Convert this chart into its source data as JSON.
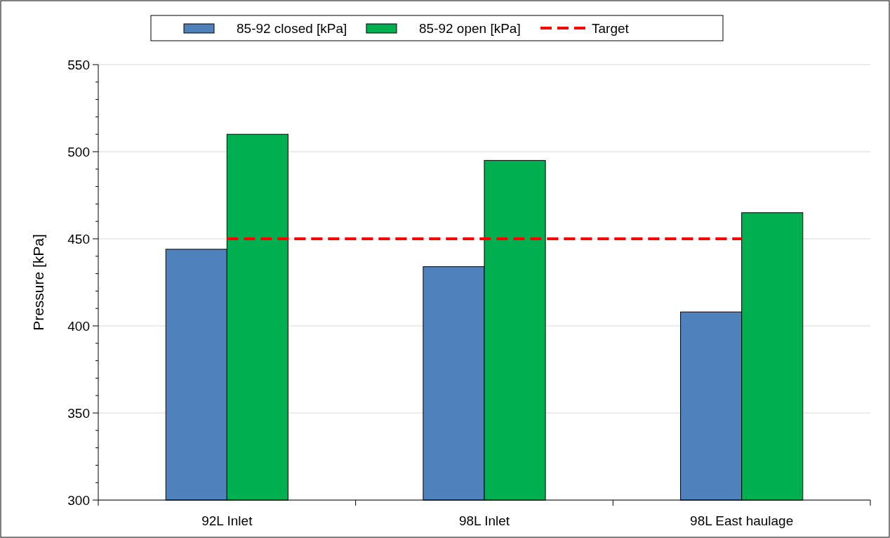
{
  "chart_data": {
    "type": "bar",
    "ylabel": "Pressure [kPa]",
    "categories": [
      "92L Inlet",
      "98L Inlet",
      "98L East haulage"
    ],
    "series": [
      {
        "name": "85-92 closed [kPa]",
        "color": "#4f81bd",
        "values": [
          444,
          434,
          408
        ]
      },
      {
        "name": "85-92 open [kPa]",
        "color": "#00b050",
        "values": [
          510,
          495,
          465
        ]
      },
      {
        "name": "Target",
        "type": "line",
        "color": "#ff0000",
        "line_style": "dashed",
        "marker": "none",
        "values": [
          450,
          450,
          450
        ]
      }
    ],
    "ylim": [
      300,
      550
    ],
    "yticks": [
      300,
      {
        "value": 310,
        "label": null
      },
      {
        "value": 320,
        "label": null
      },
      {
        "value": 330,
        "label": null
      },
      {
        "value": 340,
        "label": null
      },
      350,
      {
        "value": 360,
        "label": null
      },
      {
        "value": 370,
        "label": null
      },
      {
        "value": 380,
        "label": null
      },
      {
        "value": 390,
        "label": null
      },
      400,
      {
        "value": 410,
        "label": null
      },
      {
        "value": 420,
        "label": null
      },
      {
        "value": 430,
        "label": null
      },
      {
        "value": 440,
        "label": null
      },
      450,
      {
        "value": 460,
        "label": null
      },
      {
        "value": 470,
        "label": null
      },
      {
        "value": 480,
        "label": null
      },
      {
        "value": 490,
        "label": null
      },
      500,
      {
        "value": 510,
        "label": null
      },
      {
        "value": 520,
        "label": null
      },
      {
        "value": 530,
        "label": null
      },
      {
        "value": 540,
        "label": null
      },
      550
    ],
    "grid": "y",
    "legend": "top"
  }
}
